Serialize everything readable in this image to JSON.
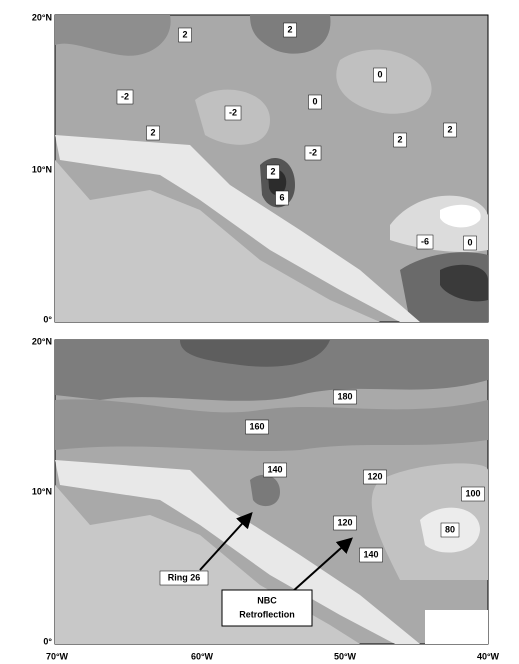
{
  "axes": {
    "lat_labels": [
      "20°N",
      "10°N",
      "0°"
    ],
    "lon_labels": [
      "70°W",
      "60°W",
      "50°W",
      "40°W"
    ]
  },
  "panels": [
    {
      "contour_labels": [
        "2",
        "2",
        "-2",
        "-2",
        "0",
        "0",
        "2",
        "-2",
        "2",
        "2",
        "2",
        "6",
        "-6",
        "0"
      ]
    },
    {
      "contour_labels": [
        "180",
        "160",
        "140",
        "120",
        "100",
        "120",
        "80",
        "140"
      ]
    }
  ],
  "annotations": {
    "ring": "Ring 26",
    "nbc_line1": "NBC",
    "nbc_line2": "Retroflection"
  }
}
